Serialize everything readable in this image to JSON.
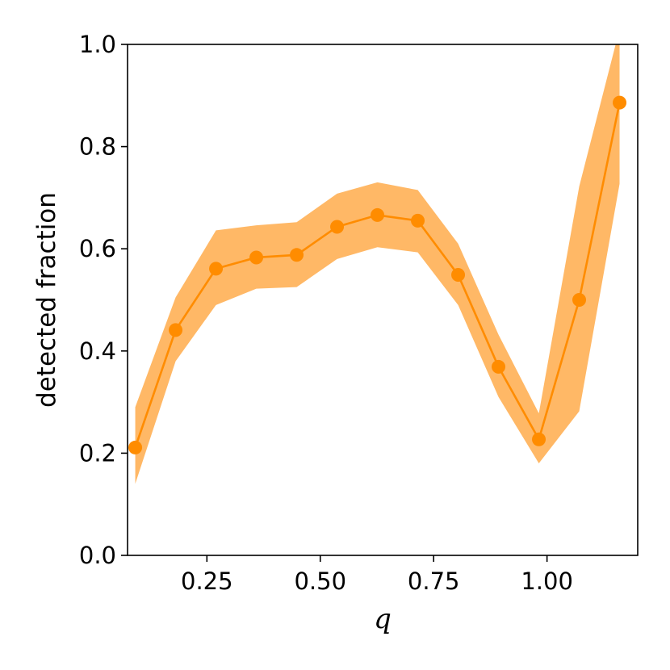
{
  "chart_data": {
    "type": "line",
    "xlabel": "q",
    "ylabel": "detected fraction",
    "xlim": [
      0.075,
      1.2
    ],
    "ylim": [
      0.0,
      1.0
    ],
    "xticks": [
      0.25,
      0.5,
      0.75,
      1.0
    ],
    "xtick_labels": [
      "0.25",
      "0.50",
      "0.75",
      "1.00"
    ],
    "yticks": [
      0.0,
      0.2,
      0.4,
      0.6,
      0.8,
      1.0
    ],
    "ytick_labels": [
      "0.0",
      "0.2",
      "0.4",
      "0.6",
      "0.8",
      "1.0"
    ],
    "grid": false,
    "color": "#ff8c00",
    "band_color": "#ffb866",
    "series": [
      {
        "x": [
          0.092,
          0.181,
          0.27,
          0.359,
          0.448,
          0.537,
          0.626,
          0.715,
          0.804,
          0.893,
          0.982,
          1.071,
          1.16
        ],
        "y": [
          0.211,
          0.441,
          0.561,
          0.583,
          0.588,
          0.643,
          0.666,
          0.655,
          0.549,
          0.369,
          0.227,
          0.5,
          0.886
        ],
        "lower": [
          0.14,
          0.38,
          0.49,
          0.522,
          0.525,
          0.58,
          0.603,
          0.593,
          0.49,
          0.31,
          0.18,
          0.282,
          0.727
        ],
        "upper": [
          0.29,
          0.505,
          0.636,
          0.646,
          0.652,
          0.708,
          0.73,
          0.715,
          0.61,
          0.432,
          0.278,
          0.722,
          1.03
        ]
      }
    ]
  }
}
